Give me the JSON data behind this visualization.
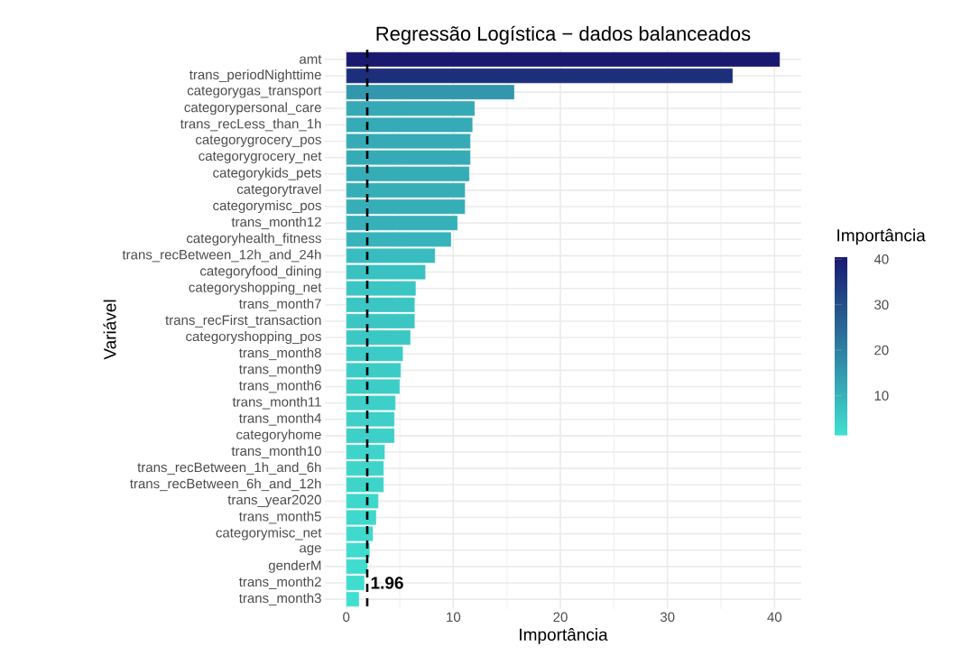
{
  "chart_data": {
    "type": "bar",
    "orientation": "horizontal",
    "title": "Regressão Logística − dados balanceados",
    "xlabel": "Importância",
    "ylabel": "Variável",
    "clabel": "Importância",
    "categories": [
      "amt",
      "trans_periodNighttime",
      "categorygas_transport",
      "categorypersonal_care",
      "trans_recLess_than_1h",
      "categorygrocery_pos",
      "categorygrocery_net",
      "categorykids_pets",
      "categorytravel",
      "categorymisc_pos",
      "trans_month12",
      "categoryhealth_fitness",
      "trans_recBetween_12h_and_24h",
      "categoryfood_dining",
      "categoryshopping_net",
      "trans_month7",
      "trans_recFirst_transaction",
      "categoryshopping_pos",
      "trans_month8",
      "trans_month9",
      "trans_month6",
      "trans_month11",
      "trans_month4",
      "categoryhome",
      "trans_month10",
      "trans_recBetween_1h_and_6h",
      "trans_recBetween_6h_and_12h",
      "trans_year2020",
      "trans_month5",
      "categorymisc_net",
      "age",
      "genderM",
      "trans_month2",
      "trans_month3"
    ],
    "values": [
      40.5,
      36.1,
      15.7,
      12.0,
      11.8,
      11.6,
      11.6,
      11.5,
      11.1,
      11.1,
      10.4,
      9.8,
      8.3,
      7.4,
      6.5,
      6.4,
      6.4,
      6.0,
      5.3,
      5.1,
      5.0,
      4.6,
      4.5,
      4.5,
      3.6,
      3.5,
      3.5,
      3.0,
      2.8,
      2.5,
      2.2,
      2.0,
      1.7,
      1.2
    ],
    "colors": [
      "#191970",
      "#1d2f7b",
      "#3297ad",
      "#35a9b6",
      "#36aab6",
      "#36abb7",
      "#36abb7",
      "#36acb7",
      "#36aeb8",
      "#36aeb8",
      "#37b1b9",
      "#37b4bb",
      "#39bcbf",
      "#3ac1c1",
      "#3bc5c3",
      "#3bc6c3",
      "#3bc6c3",
      "#3bc8c4",
      "#3ccbc6",
      "#3cccc6",
      "#3ccdc7",
      "#3dcfc8",
      "#3dcfc8",
      "#3dcfc8",
      "#3ed4ca",
      "#3ed4ca",
      "#3ed4ca",
      "#3ed7cc",
      "#3ed8cc",
      "#3fd9cd",
      "#3fdbce",
      "#3fdccf",
      "#3fddcf",
      "#40e0d0"
    ],
    "xlim": [
      -2.0,
      42.5
    ],
    "xticks": [
      0,
      10,
      20,
      30,
      40
    ],
    "clim": [
      1.2,
      40.5
    ],
    "cticks": [
      10,
      20,
      30,
      40
    ],
    "grid": true,
    "ref_lines": [
      {
        "axis": "x",
        "value": 1.96,
        "label": "1.96",
        "line_style": "dashed",
        "color": "#000000"
      }
    ]
  }
}
